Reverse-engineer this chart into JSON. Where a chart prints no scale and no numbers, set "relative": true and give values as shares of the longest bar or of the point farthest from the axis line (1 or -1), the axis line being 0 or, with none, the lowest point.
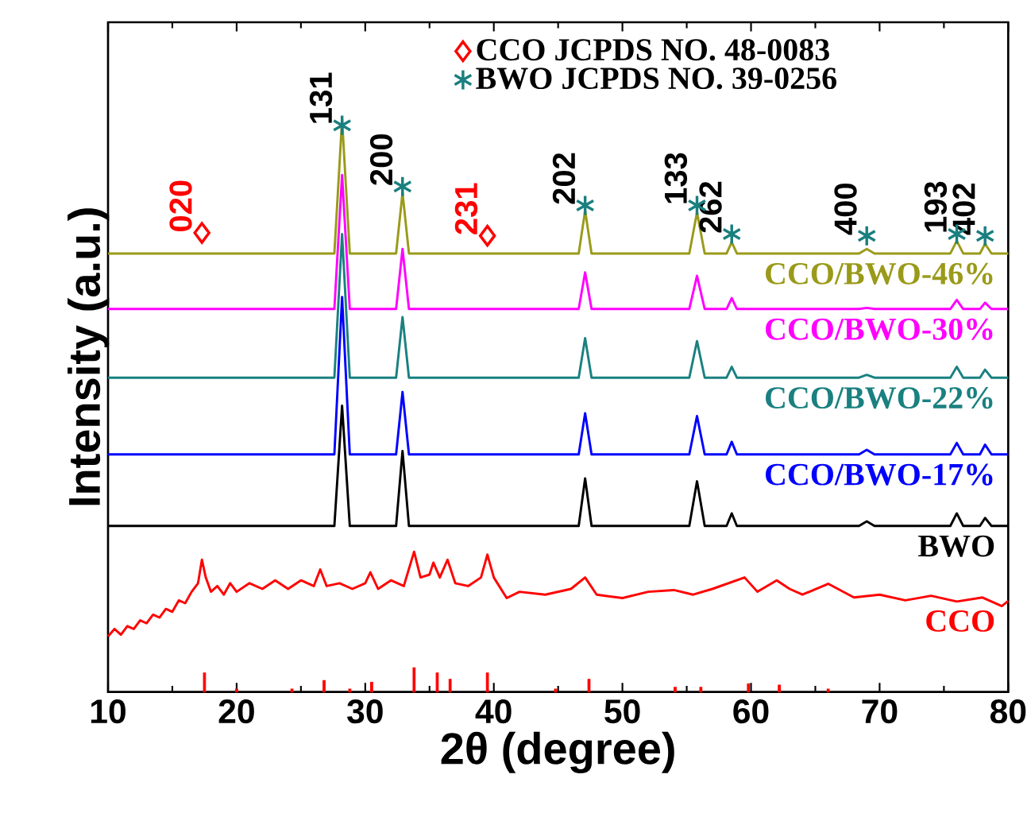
{
  "chart_data": {
    "type": "line",
    "relative": true,
    "xlabel": "2θ (degree)",
    "ylabel": "Intensity (a.u.)",
    "xlim": [
      10,
      80
    ],
    "xticks": [
      10,
      20,
      30,
      40,
      50,
      60,
      70,
      80
    ],
    "legend": "top",
    "grid": false,
    "line_style": "solid",
    "marker": "none",
    "series": [
      {
        "name": "CCO/BWO-46%",
        "color": "#9a9a1a",
        "x": [
          10,
          27.6,
          28.2,
          28.8,
          32.4,
          32.9,
          33.4,
          46.6,
          47.1,
          47.6,
          55.2,
          55.8,
          56.4,
          58.1,
          58.5,
          58.9,
          68.4,
          69,
          69.6,
          75.5,
          76,
          76.5,
          77.8,
          78.2,
          78.7,
          80
        ],
        "values": [
          0.766,
          0.766,
          1.0,
          0.766,
          0.766,
          0.872,
          0.766,
          0.766,
          0.841,
          0.766,
          0.766,
          0.838,
          0.766,
          0.766,
          0.786,
          0.766,
          0.766,
          0.774,
          0.766,
          0.766,
          0.788,
          0.766,
          0.766,
          0.783,
          0.766,
          0.766
        ]
      },
      {
        "name": "CCO/BWO-30%",
        "color": "#ff00ff",
        "x": [
          10,
          27.6,
          28.2,
          28.8,
          32.4,
          32.9,
          33.4,
          46.6,
          47.1,
          47.6,
          55.2,
          55.8,
          56.4,
          58.1,
          58.5,
          58.9,
          68.4,
          69,
          69.6,
          75.5,
          76,
          76.5,
          77.8,
          78.2,
          78.7,
          80
        ],
        "values": [
          0.669,
          0.669,
          0.903,
          0.669,
          0.669,
          0.774,
          0.669,
          0.669,
          0.733,
          0.669,
          0.669,
          0.727,
          0.669,
          0.669,
          0.688,
          0.669,
          0.669,
          0.671,
          0.669,
          0.669,
          0.685,
          0.669,
          0.669,
          0.68,
          0.669,
          0.669
        ]
      },
      {
        "name": "CCO/BWO-22%",
        "color": "#1a8080",
        "x": [
          10,
          27.6,
          28.2,
          28.8,
          32.4,
          32.9,
          33.4,
          46.6,
          47.1,
          47.6,
          55.2,
          55.8,
          56.4,
          58.1,
          58.5,
          58.9,
          68.4,
          69,
          69.6,
          75.5,
          76,
          76.5,
          77.8,
          78.2,
          78.7,
          80
        ],
        "values": [
          0.549,
          0.549,
          0.8,
          0.549,
          0.549,
          0.655,
          0.549,
          0.549,
          0.618,
          0.549,
          0.549,
          0.613,
          0.549,
          0.549,
          0.568,
          0.549,
          0.549,
          0.554,
          0.549,
          0.549,
          0.568,
          0.549,
          0.549,
          0.563,
          0.549,
          0.549
        ]
      },
      {
        "name": "CCO/BWO-17%",
        "color": "#0000ff",
        "x": [
          10,
          27.6,
          28.2,
          28.8,
          32.4,
          32.9,
          33.4,
          46.6,
          47.1,
          47.6,
          55.2,
          55.8,
          56.4,
          58.1,
          58.5,
          58.9,
          68.4,
          69,
          69.6,
          75.5,
          76,
          76.5,
          77.8,
          78.2,
          78.7,
          80
        ],
        "values": [
          0.415,
          0.415,
          0.69,
          0.415,
          0.415,
          0.524,
          0.415,
          0.415,
          0.487,
          0.415,
          0.415,
          0.482,
          0.415,
          0.415,
          0.437,
          0.415,
          0.415,
          0.423,
          0.415,
          0.415,
          0.435,
          0.415,
          0.415,
          0.432,
          0.415,
          0.415
        ]
      },
      {
        "name": "BWO",
        "color": "#000000",
        "x": [
          10,
          27.6,
          28.2,
          28.8,
          32.4,
          32.9,
          33.4,
          46.6,
          47.1,
          47.6,
          55.2,
          55.8,
          56.4,
          58.1,
          58.5,
          58.9,
          68.4,
          69,
          69.6,
          75.5,
          76,
          76.5,
          77.8,
          78.2,
          78.7,
          80
        ],
        "values": [
          0.29,
          0.29,
          0.5,
          0.29,
          0.29,
          0.421,
          0.29,
          0.29,
          0.373,
          0.29,
          0.29,
          0.368,
          0.29,
          0.29,
          0.312,
          0.29,
          0.29,
          0.298,
          0.29,
          0.29,
          0.312,
          0.29,
          0.29,
          0.304,
          0.29,
          0.29
        ]
      },
      {
        "name": "CCO",
        "color": "#ff0000",
        "x": [
          10,
          10.5,
          11,
          11.5,
          12,
          12.5,
          13,
          13.5,
          14,
          14.5,
          15,
          15.5,
          16,
          16.5,
          17,
          17.3,
          17.6,
          18,
          18.5,
          19,
          19.5,
          20,
          21,
          22,
          23,
          24,
          25,
          26,
          26.5,
          27,
          28,
          29,
          30,
          30.4,
          31,
          32,
          33,
          33.8,
          34.3,
          35,
          35.3,
          35.8,
          36.4,
          37,
          38,
          39,
          39.5,
          40,
          41,
          42,
          44,
          46,
          47.1,
          48,
          50,
          52,
          54,
          55.5,
          57,
          59.5,
          60.5,
          62,
          63,
          64,
          66,
          68,
          70,
          72,
          74,
          76,
          78,
          79.5,
          80
        ],
        "values": [
          0.097,
          0.11,
          0.1,
          0.115,
          0.11,
          0.125,
          0.12,
          0.135,
          0.13,
          0.145,
          0.14,
          0.16,
          0.155,
          0.175,
          0.19,
          0.231,
          0.2,
          0.175,
          0.185,
          0.17,
          0.19,
          0.175,
          0.19,
          0.18,
          0.195,
          0.18,
          0.195,
          0.185,
          0.214,
          0.185,
          0.19,
          0.18,
          0.19,
          0.209,
          0.18,
          0.195,
          0.185,
          0.245,
          0.2,
          0.205,
          0.226,
          0.2,
          0.231,
          0.19,
          0.185,
          0.2,
          0.24,
          0.2,
          0.164,
          0.175,
          0.17,
          0.18,
          0.2,
          0.17,
          0.164,
          0.175,
          0.178,
          0.17,
          0.18,
          0.2,
          0.175,
          0.195,
          0.18,
          0.17,
          0.189,
          0.165,
          0.17,
          0.16,
          0.168,
          0.158,
          0.165,
          0.15,
          0.159
        ]
      },
      {
        "type": "bar",
        "color": "#ff0000",
        "x": [
          17.5,
          20,
          24.3,
          26.8,
          28.8,
          30.5,
          33.8,
          35.6,
          36.6,
          39.5,
          44.8,
          47.4,
          54.1,
          56.1,
          59.8,
          62.2,
          66
        ],
        "values": [
          0.033,
          0.005,
          0.005,
          0.02,
          0.005,
          0.017,
          0.042,
          0.033,
          0.022,
          0.033,
          0.005,
          0.022,
          0.008,
          0.008,
          0.014,
          0.012,
          0.005
        ]
      },
      {
        "type": "scatter",
        "name": "CCO  JCPDS NO. 48-0083",
        "color": "#ff0000",
        "marker": "diamond",
        "x": [
          17.3,
          39.5
        ],
        "values": [
          0.802,
          0.797
        ]
      },
      {
        "type": "scatter",
        "name": "BWO JCPDS NO.  39-0256",
        "color": "#1a7f7f",
        "marker": "cross",
        "x": [
          28.2,
          32.9,
          47.1,
          55.8,
          58.5,
          69,
          76,
          78.2
        ],
        "values": [
          0.99,
          0.883,
          0.85,
          0.85,
          0.8,
          0.797,
          0.8,
          0.797
        ]
      }
    ],
    "annotations": [
      "020",
      "131",
      "200",
      "231",
      "202",
      "133",
      "262",
      "400",
      "193",
      "402"
    ]
  }
}
